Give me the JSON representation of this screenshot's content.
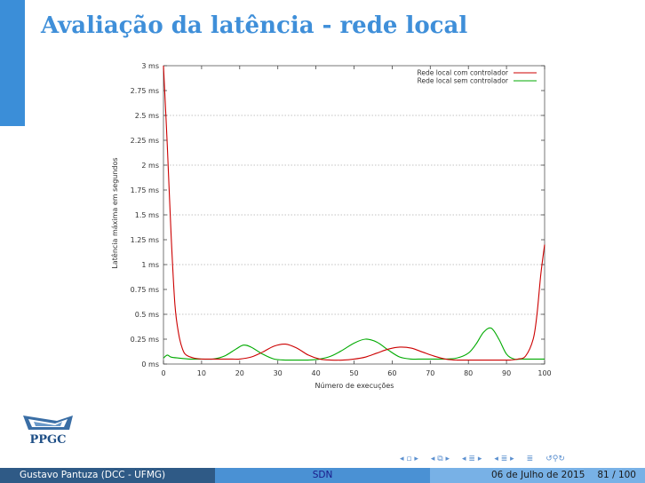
{
  "slide": {
    "title": "Avaliação da latência - rede local"
  },
  "logo": {
    "text": "PPGC"
  },
  "footer": {
    "author": "Gustavo Pantuza (DCC - UFMG)",
    "topic": "SDN",
    "date": "06 de Julho de 2015",
    "page": "81 / 100"
  },
  "navigation": {
    "icons": [
      "nav-frame-icon",
      "nav-subsection-icon",
      "nav-section-icon",
      "nav-slide-icon",
      "nav-align-icon",
      "nav-search-icon"
    ]
  },
  "chart_data": {
    "type": "line",
    "title": "",
    "xlabel": "Número de execuções",
    "ylabel": "Latência máxima em segundos",
    "xlim": [
      0,
      100
    ],
    "ylim": [
      0,
      3
    ],
    "x_ticks": [
      "0",
      "10",
      "20",
      "30",
      "40",
      "50",
      "60",
      "70",
      "80",
      "90",
      "100"
    ],
    "y_ticks": [
      "0 ms",
      "0.25 ms",
      "0.5 ms",
      "0.75 ms",
      "1 ms",
      "1.25 ms",
      "1.5 ms",
      "1.75 ms",
      "2 ms",
      "2.25 ms",
      "2.5 ms",
      "2.75 ms",
      "3 ms"
    ],
    "grid": true,
    "legend_position": "top-right",
    "series": [
      {
        "name": "Rede local com controlador",
        "color": "#cc0000",
        "x": [
          0,
          1,
          2,
          3,
          4,
          5,
          6,
          8,
          10,
          12,
          15,
          18,
          20,
          23,
          26,
          29,
          32,
          35,
          38,
          41,
          44,
          47,
          50,
          53,
          56,
          59,
          62,
          65,
          68,
          71,
          74,
          77,
          80,
          83,
          86,
          89,
          91,
          93,
          95,
          97,
          98,
          99,
          100
        ],
        "y": [
          3.0,
          2.2,
          1.3,
          0.6,
          0.3,
          0.15,
          0.09,
          0.06,
          0.05,
          0.05,
          0.05,
          0.05,
          0.05,
          0.07,
          0.12,
          0.18,
          0.2,
          0.16,
          0.09,
          0.05,
          0.04,
          0.04,
          0.05,
          0.07,
          0.11,
          0.15,
          0.17,
          0.16,
          0.12,
          0.08,
          0.05,
          0.04,
          0.04,
          0.04,
          0.04,
          0.04,
          0.04,
          0.05,
          0.08,
          0.25,
          0.5,
          0.9,
          1.2
        ]
      },
      {
        "name": "Rede local sem controlador",
        "color": "#00aa00",
        "x": [
          0,
          1,
          2,
          4,
          7,
          10,
          13,
          16,
          19,
          21,
          23,
          26,
          29,
          32,
          35,
          38,
          41,
          44,
          47,
          50,
          53,
          56,
          59,
          62,
          65,
          68,
          71,
          74,
          77,
          80,
          82,
          84,
          86,
          88,
          90,
          92,
          94,
          96,
          98,
          100
        ],
        "y": [
          0.06,
          0.09,
          0.07,
          0.06,
          0.05,
          0.05,
          0.05,
          0.08,
          0.15,
          0.19,
          0.17,
          0.1,
          0.05,
          0.04,
          0.04,
          0.04,
          0.05,
          0.08,
          0.14,
          0.21,
          0.25,
          0.22,
          0.14,
          0.07,
          0.05,
          0.05,
          0.05,
          0.05,
          0.06,
          0.11,
          0.2,
          0.32,
          0.36,
          0.25,
          0.1,
          0.05,
          0.05,
          0.05,
          0.05,
          0.05
        ]
      }
    ]
  }
}
